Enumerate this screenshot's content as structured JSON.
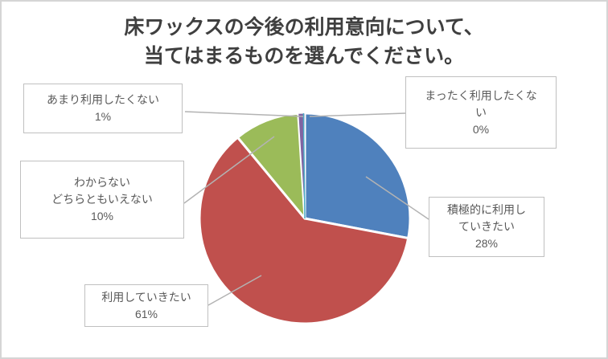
{
  "chart_data": {
    "type": "pie",
    "title": "床ワックスの今後の利用意向について、当てはまるものを選んでください。",
    "title_lines": [
      "床ワックスの今後の利用意向について、",
      "当てはまるものを選んでください。"
    ],
    "legend": "none",
    "categories": [
      "積極的に利用していきたい",
      "利用していきたい",
      "わからない どちらともいえない",
      "あまり利用したくない",
      "まったく利用したくない"
    ],
    "values": [
      28,
      61,
      10,
      1,
      0
    ],
    "slices": [
      {
        "label": "積極的に利用していきたい",
        "value": 28,
        "pct_text": "28%",
        "color": "#4F81BD",
        "callout_lines": [
          "積極的に利用し",
          "ていきたい",
          "28%"
        ]
      },
      {
        "label": "利用していきたい",
        "value": 61,
        "pct_text": "61%",
        "color": "#C0504D",
        "callout_lines": [
          "利用していきたい",
          "61%"
        ]
      },
      {
        "label": "わからない どちらともいえない",
        "value": 10,
        "pct_text": "10%",
        "color": "#9BBB59",
        "callout_lines": [
          "わからない",
          "どちらともいえない",
          "10%"
        ]
      },
      {
        "label": "あまり利用したくない",
        "value": 1,
        "pct_text": "1%",
        "color": "#8064A2",
        "callout_lines": [
          "あまり利用したくない",
          "1%"
        ]
      },
      {
        "label": "まったく利用したくない",
        "value": 0,
        "pct_text": "0%",
        "color": "#4BACC6",
        "callout_lines": [
          "まったく利用したくな",
          "い",
          "0%"
        ]
      }
    ],
    "slice_border_color": "#FFFFFF",
    "leader_line_color": "#B3B3B3",
    "callout_border_color": "#C0C0C0",
    "title_color": "#3F3F3F",
    "label_text_color": "#595959"
  }
}
